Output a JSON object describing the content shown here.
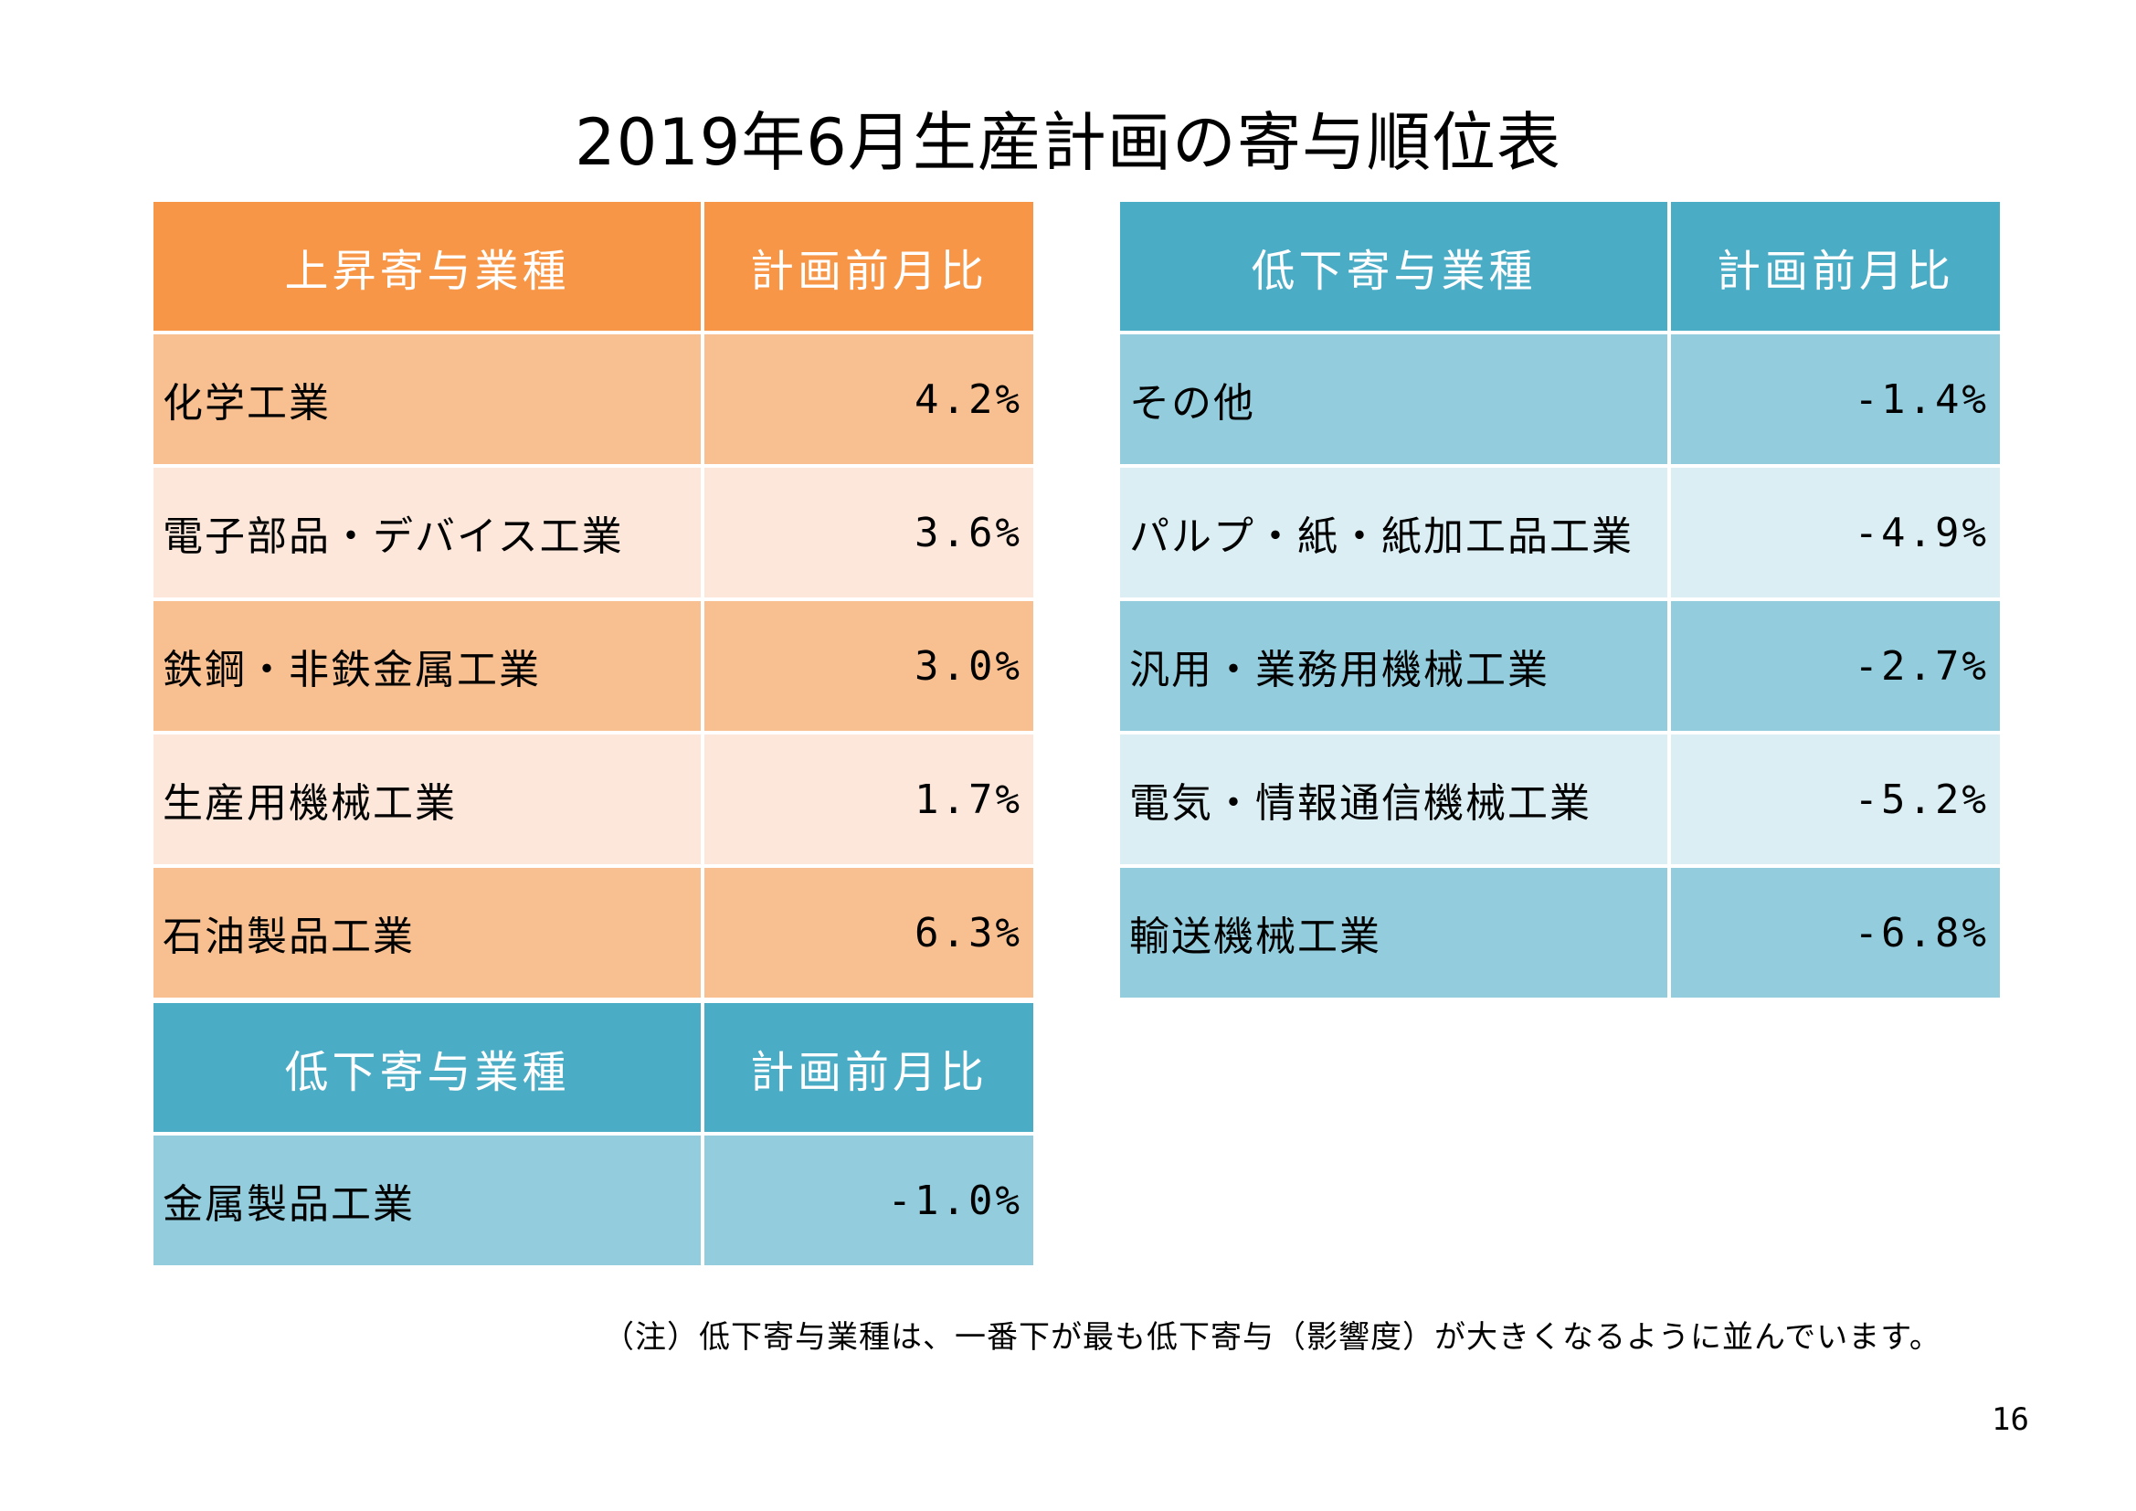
{
  "title": "2019年6月生産計画の寄与順位表",
  "left_upper_table": {
    "header_name": "上昇寄与業種",
    "header_value": "計画前月比",
    "header_color": "#f79646",
    "rows": [
      {
        "name": "化学工業",
        "value": "4.2%"
      },
      {
        "name": "電子部品・デバイス工業",
        "value": "3.6%"
      },
      {
        "name": "鉄鋼・非鉄金属工業",
        "value": "3.0%"
      },
      {
        "name": "生産用機械工業",
        "value": "1.7%"
      },
      {
        "name": "石油製品工業",
        "value": "6.3%"
      }
    ]
  },
  "left_lower_table": {
    "header_name": "低下寄与業種",
    "header_value": "計画前月比",
    "header_color": "#4bacc6",
    "rows": [
      {
        "name": "金属製品工業",
        "value": "-1.0%"
      }
    ]
  },
  "right_table": {
    "header_name": "低下寄与業種",
    "header_value": "計画前月比",
    "header_color": "#4bacc6",
    "rows": [
      {
        "name": "その他",
        "value": "-1.4%"
      },
      {
        "name": "パルプ・紙・紙加工品工業",
        "value": "-4.9%"
      },
      {
        "name": "汎用・業務用機械工業",
        "value": "-2.7%"
      },
      {
        "name": "電気・情報通信機械工業",
        "value": "-5.2%"
      },
      {
        "name": "輸送機械工業",
        "value": "-6.8%"
      }
    ]
  },
  "note": "（注）低下寄与業種は、一番下が最も低下寄与（影響度）が大きくなるように並んでいます。",
  "page_number": "16"
}
